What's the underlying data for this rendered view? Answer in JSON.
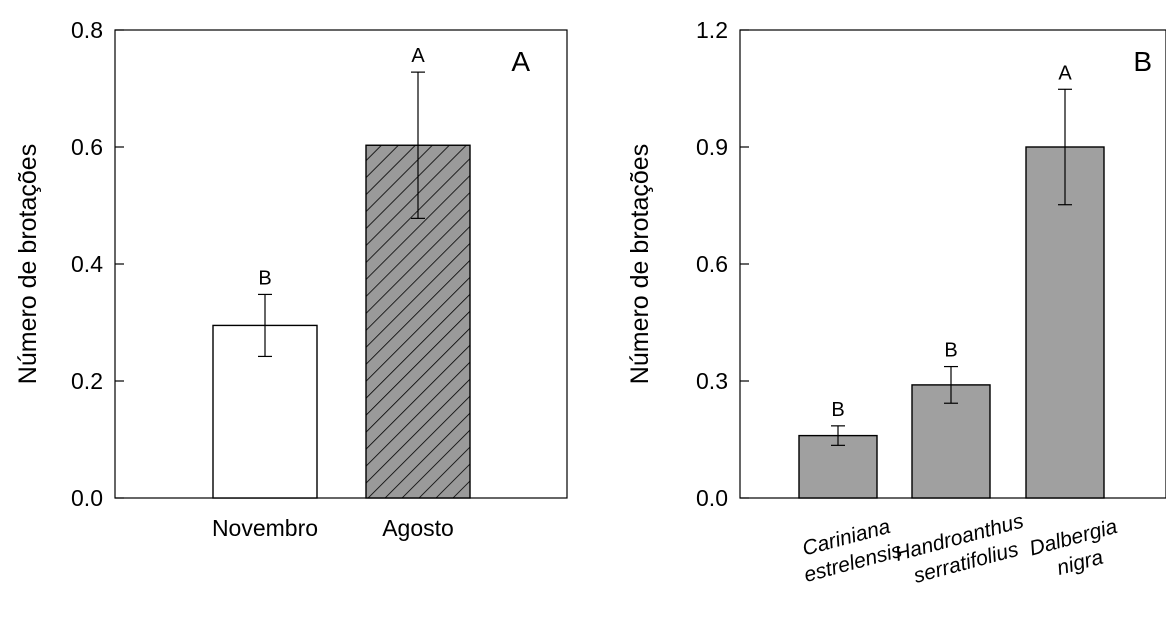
{
  "chart_data": [
    {
      "type": "bar",
      "panel_label": "A",
      "ylabel": "Número de brotações",
      "xlabel": "",
      "ylim": [
        0,
        0.8
      ],
      "yticks": [
        "0.0",
        "0.2",
        "0.4",
        "0.6",
        "0.8"
      ],
      "ytick_values": [
        0,
        0.2,
        0.4,
        0.6,
        0.8
      ],
      "categories": [
        {
          "lines": [
            "Novembro"
          ]
        },
        {
          "lines": [
            "Agosto"
          ]
        }
      ],
      "values": [
        0.295,
        0.603
      ],
      "errors": [
        0.053,
        0.125
      ],
      "letters": [
        "B",
        "A"
      ],
      "fills": [
        "#ffffff",
        "hatched-gray"
      ],
      "grid": false,
      "legend": "none"
    },
    {
      "type": "bar",
      "panel_label": "B",
      "ylabel": "Número de brotações",
      "xlabel": "",
      "ylim": [
        0,
        1.2
      ],
      "yticks": [
        "0.0",
        "0.3",
        "0.6",
        "0.9",
        "1.2"
      ],
      "ytick_values": [
        0,
        0.3,
        0.6,
        0.9,
        1.2
      ],
      "categories": [
        {
          "lines": [
            "Cariniana",
            "estrelensis"
          ]
        },
        {
          "lines": [
            "Handroanthus",
            "serratifolius"
          ]
        },
        {
          "lines": [
            "Dalbergia",
            "nigra"
          ]
        }
      ],
      "values": [
        0.16,
        0.29,
        0.9
      ],
      "errors": [
        0.025,
        0.047,
        0.148
      ],
      "letters": [
        "B",
        "B",
        "A"
      ],
      "fills": [
        "#a0a0a0",
        "#a0a0a0",
        "#a0a0a0"
      ],
      "grid": false,
      "legend": "none"
    }
  ]
}
